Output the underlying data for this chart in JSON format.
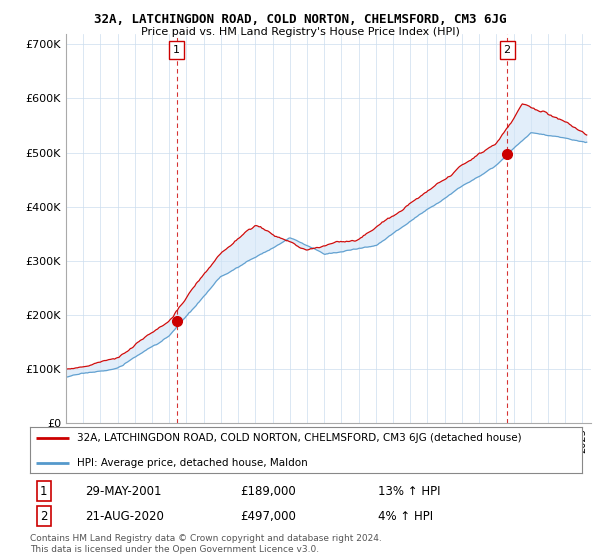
{
  "title": "32A, LATCHINGDON ROAD, COLD NORTON, CHELMSFORD, CM3 6JG",
  "subtitle": "Price paid vs. HM Land Registry's House Price Index (HPI)",
  "ylabel_ticks": [
    "£0",
    "£100K",
    "£200K",
    "£300K",
    "£400K",
    "£500K",
    "£600K",
    "£700K"
  ],
  "ytick_values": [
    0,
    100000,
    200000,
    300000,
    400000,
    500000,
    600000,
    700000
  ],
  "ylim": [
    0,
    720000
  ],
  "xlim_start": 1995.0,
  "xlim_end": 2025.5,
  "red_color": "#cc0000",
  "blue_color": "#5599cc",
  "fill_color": "#d0e4f7",
  "marker1_x": 2001.42,
  "marker1_y": 189000,
  "marker2_x": 2020.63,
  "marker2_y": 497000,
  "legend_label_red": "32A, LATCHINGDON ROAD, COLD NORTON, CHELMSFORD, CM3 6JG (detached house)",
  "legend_label_blue": "HPI: Average price, detached house, Maldon",
  "annotation1_num": "1",
  "annotation1_date": "29-MAY-2001",
  "annotation1_price": "£189,000",
  "annotation1_hpi": "13% ↑ HPI",
  "annotation2_num": "2",
  "annotation2_date": "21-AUG-2020",
  "annotation2_price": "£497,000",
  "annotation2_hpi": "4% ↑ HPI",
  "footer": "Contains HM Land Registry data © Crown copyright and database right 2024.\nThis data is licensed under the Open Government Licence v3.0.",
  "background_color": "#ffffff",
  "grid_color": "#ccddee"
}
